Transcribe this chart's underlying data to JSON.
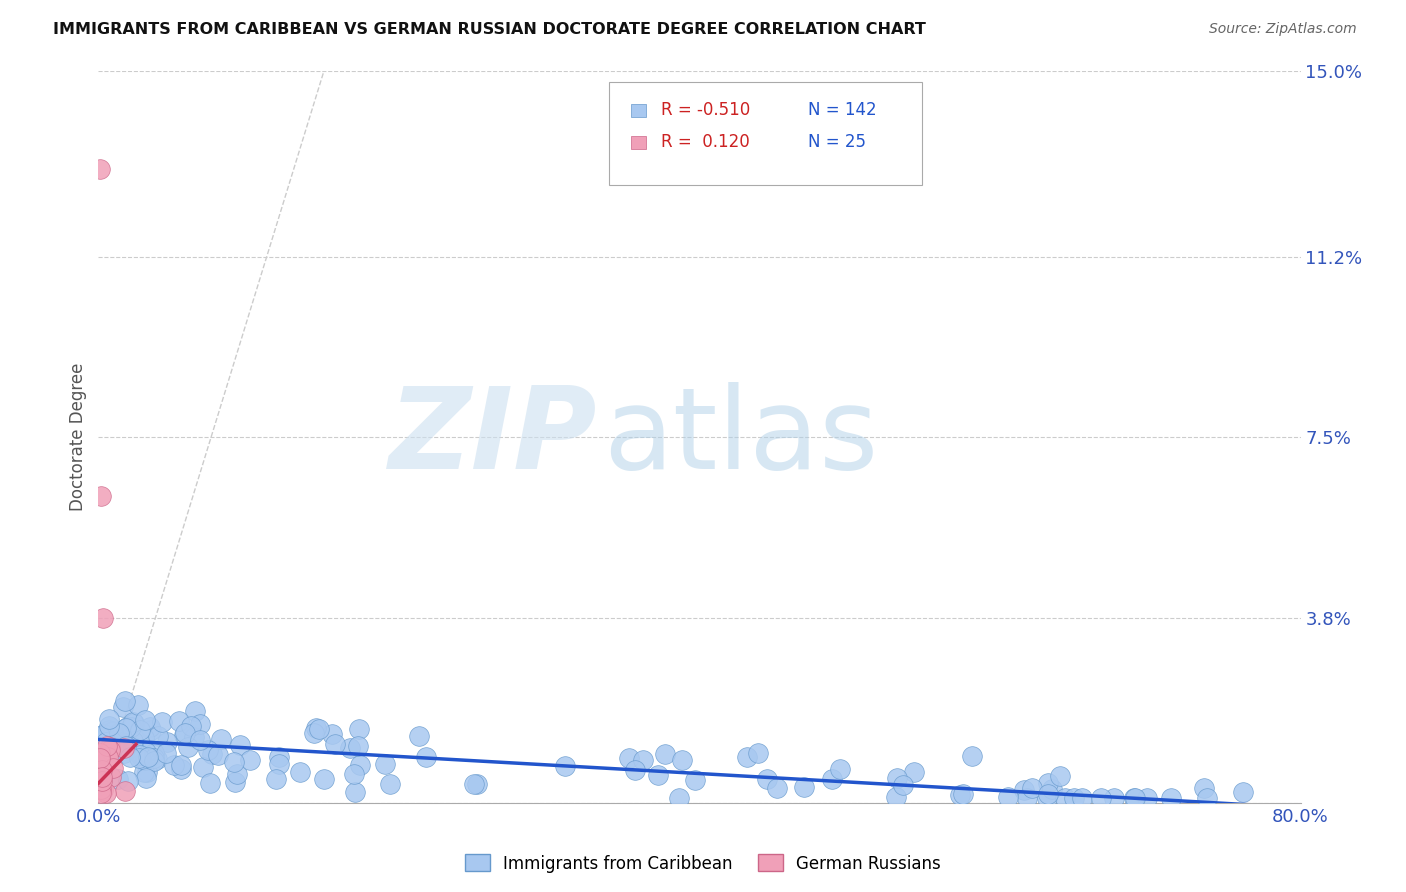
{
  "title": "IMMIGRANTS FROM CARIBBEAN VS GERMAN RUSSIAN DOCTORATE DEGREE CORRELATION CHART",
  "source": "Source: ZipAtlas.com",
  "ylabel": "Doctorate Degree",
  "xlim": [
    0.0,
    0.8
  ],
  "ylim": [
    0.0,
    0.15
  ],
  "ytick_positions": [
    0.0,
    0.038,
    0.075,
    0.112,
    0.15
  ],
  "ytick_labels": [
    "",
    "3.8%",
    "7.5%",
    "11.2%",
    "15.0%"
  ],
  "series1_color": "#a8c8f0",
  "series1_edge_color": "#6699cc",
  "series2_color": "#f0a0b8",
  "series2_edge_color": "#cc6688",
  "trend1_color": "#2255cc",
  "trend2_color": "#cc3355",
  "diag_color": "#cccccc",
  "legend1_label": "Immigrants from Caribbean",
  "legend2_label": "German Russians",
  "R1": -0.51,
  "N1": 142,
  "R2": 0.12,
  "N2": 25,
  "watermark_zip": "ZIP",
  "watermark_atlas": "atlas",
  "trend1_x": [
    0.0,
    0.8
  ],
  "trend1_y": [
    0.013,
    -0.001
  ],
  "trend2_x": [
    0.0,
    0.025
  ],
  "trend2_y": [
    0.004,
    0.012
  ]
}
